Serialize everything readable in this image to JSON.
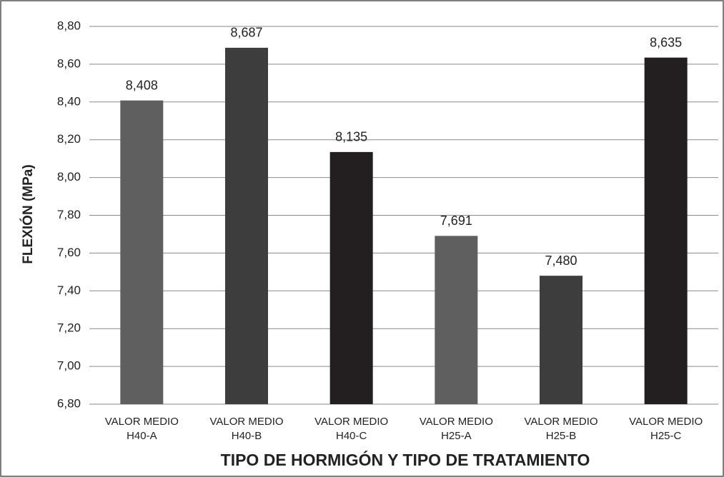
{
  "chart_data": {
    "type": "bar",
    "xlabel": "TIPO DE HORMIGÓN Y TIPO DE TRATAMIENTO",
    "ylabel": "FLEXIÓN (MPa)",
    "categories": [
      [
        "VALOR MEDIO",
        "H40-A"
      ],
      [
        "VALOR MEDIO",
        "H40-B"
      ],
      [
        "VALOR MEDIO",
        "H40-C"
      ],
      [
        "VALOR MEDIO",
        "H25-A"
      ],
      [
        "VALOR MEDIO",
        "H25-B"
      ],
      [
        "VALOR MEDIO",
        "H25-C"
      ]
    ],
    "values": [
      8.408,
      8.687,
      8.135,
      7.691,
      7.48,
      8.635
    ],
    "value_labels": [
      "8,408",
      "8,687",
      "8,135",
      "7,691",
      "7,480",
      "8,635"
    ],
    "colors": [
      "#5f5f5f",
      "#3d3d3d",
      "#231f20",
      "#5f5f5f",
      "#3d3d3d",
      "#231f20"
    ],
    "ylim": [
      6.8,
      8.8
    ],
    "yticks": [
      {
        "value": 6.8,
        "label": "6,80"
      },
      {
        "value": 7.0,
        "label": "7,00"
      },
      {
        "value": 7.2,
        "label": "7,20"
      },
      {
        "value": 7.4,
        "label": "7,40"
      },
      {
        "value": 7.6,
        "label": "7,60"
      },
      {
        "value": 7.8,
        "label": "7,80"
      },
      {
        "value": 8.0,
        "label": "8,00"
      },
      {
        "value": 8.2,
        "label": "8,20"
      },
      {
        "value": 8.4,
        "label": "8,40"
      },
      {
        "value": 8.6,
        "label": "8,60"
      },
      {
        "value": 8.8,
        "label": "8,80"
      }
    ],
    "grid": true
  }
}
